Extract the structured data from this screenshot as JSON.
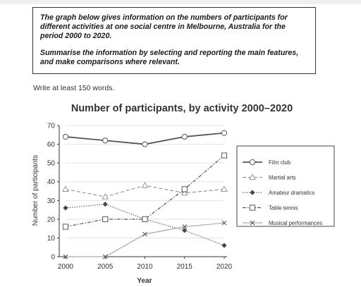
{
  "task": {
    "paragraph1": "The graph below gives information on the numbers of participants for different activities at one social centre in Melbourne, Australia for the period 2000 to 2020.",
    "paragraph2": "Summarise the information by selecting and reporting the main features, and make comparisons where relevant."
  },
  "instruction": "Write at least 150 words.",
  "colors": {
    "film_club": "#555555",
    "martial_arts": "#999999",
    "amateur_dramatics": "#444444",
    "table_tennis": "#555555",
    "musical_performances": "#aaaaaa",
    "gridline": "#e3e3e3",
    "axis": "#333333"
  },
  "chart_data": {
    "type": "line",
    "title": "Number of participants, by activity 2000–2020",
    "xlabel": "Year",
    "ylabel": "Number of participants",
    "x": [
      2000,
      2005,
      2010,
      2015,
      2020
    ],
    "x_tick_labels": [
      "2000",
      "2005",
      "2010",
      "2015",
      "2020"
    ],
    "y_ticks": [
      0,
      10,
      20,
      30,
      40,
      50,
      60,
      70
    ],
    "y_tick_labels": [
      "0",
      "10",
      "20",
      "30",
      "40",
      "50",
      "60",
      "70"
    ],
    "ylim": [
      0,
      70
    ],
    "grid": true,
    "legend_position": "right",
    "series": [
      {
        "name": "Film club",
        "values": [
          64,
          62,
          60,
          64,
          66
        ],
        "marker": "circle",
        "dash": "solid",
        "weight": "heavy",
        "color_key": "film_club"
      },
      {
        "name": "Martial arts",
        "values": [
          36,
          32,
          38,
          34,
          36
        ],
        "marker": "triangle",
        "dash": "dash",
        "weight": "normal",
        "color_key": "martial_arts"
      },
      {
        "name": "Amateur dramatics",
        "values": [
          26,
          28,
          20,
          14,
          6
        ],
        "marker": "diamond",
        "dash": "dot",
        "weight": "normal",
        "color_key": "amateur_dramatics"
      },
      {
        "name": "Table tennis",
        "values": [
          16,
          20,
          20,
          36,
          54
        ],
        "marker": "square",
        "dash": "dashdot",
        "weight": "normal",
        "color_key": "table_tennis"
      },
      {
        "name": "Musical performances",
        "values": [
          0,
          0,
          12,
          16,
          18
        ],
        "marker": "cross",
        "dash": "solid",
        "weight": "normal",
        "color_key": "musical_performances"
      }
    ]
  }
}
